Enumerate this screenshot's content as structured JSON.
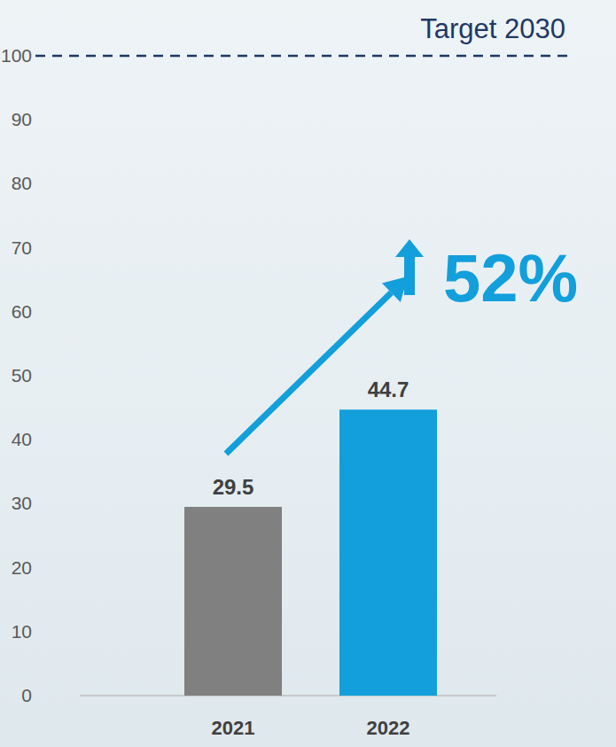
{
  "chart_data": {
    "type": "bar",
    "categories": [
      "2021",
      "2022"
    ],
    "values": [
      29.5,
      44.7
    ],
    "colors": [
      "#808080",
      "#129fdb"
    ],
    "ylim": [
      0,
      100
    ],
    "yticks": [
      0,
      10,
      20,
      30,
      40,
      50,
      60,
      70,
      80,
      90,
      100
    ],
    "grid": false,
    "data_labels": true,
    "target": {
      "value": 100,
      "label": "Target 2030"
    },
    "annotations": [
      "52%"
    ]
  }
}
